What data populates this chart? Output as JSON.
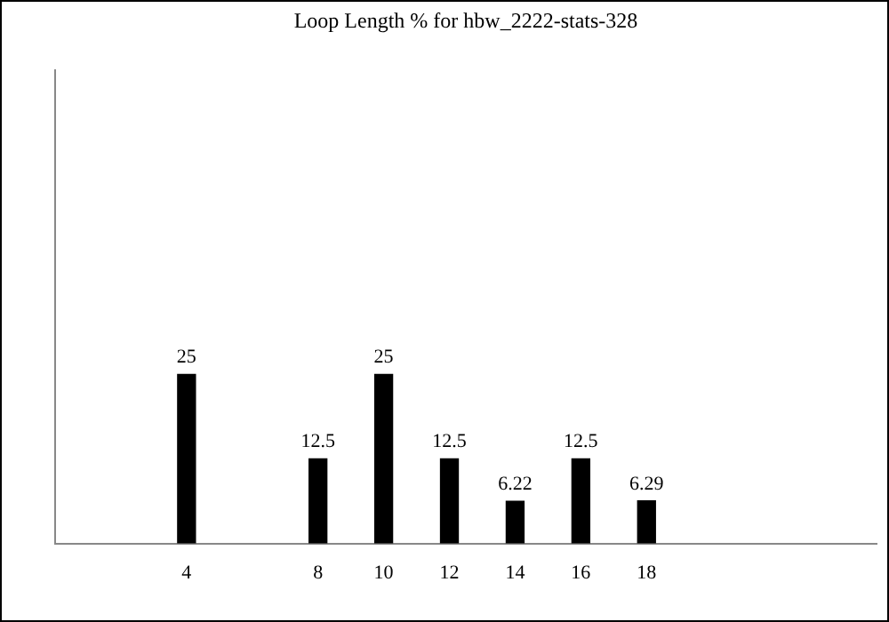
{
  "chart_data": {
    "type": "bar",
    "title": "Loop Length % for hbw_2222-stats-328",
    "x": [
      4,
      8,
      10,
      12,
      14,
      16,
      18
    ],
    "values": [
      25,
      12.5,
      25,
      12.5,
      6.22,
      12.5,
      6.29
    ],
    "color": "#000000",
    "xlim": [
      0,
      25
    ],
    "xticks": [
      4,
      8,
      10,
      12,
      14,
      16,
      18
    ],
    "data_labels": true,
    "tick_labels": "x",
    "grid": false,
    "legend": false
  }
}
